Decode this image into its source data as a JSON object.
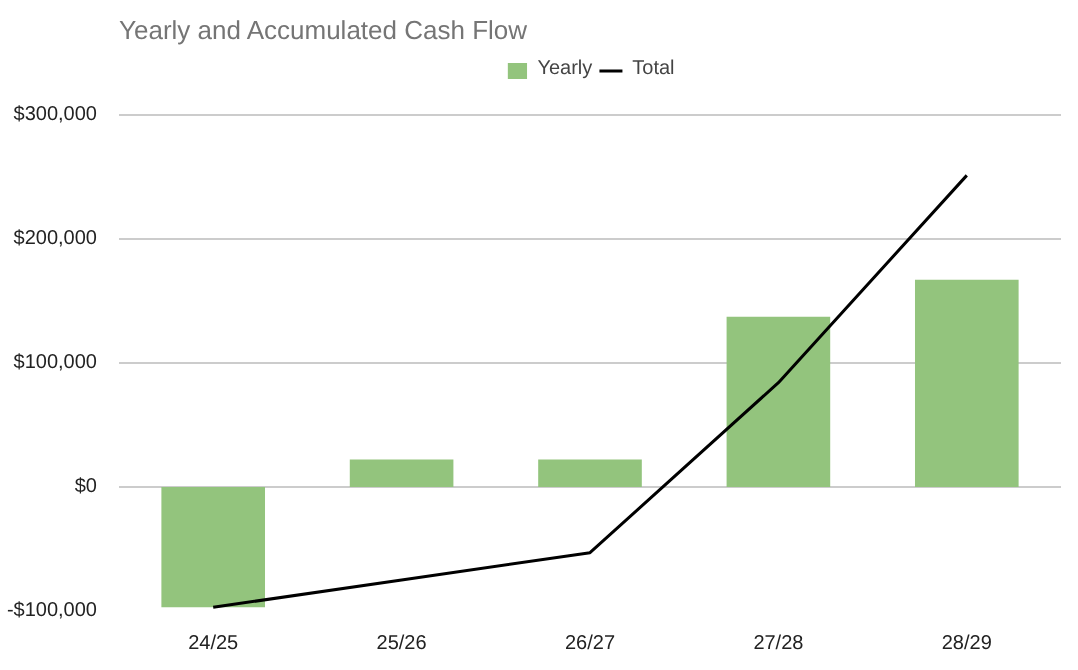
{
  "chart_data": {
    "type": "bar",
    "title": "Yearly and Accumulated Cash Flow",
    "categories": [
      "24/25",
      "25/26",
      "26/27",
      "27/28",
      "28/29"
    ],
    "series": [
      {
        "name": "Yearly",
        "color": "#93c47d",
        "values": [
          -97000,
          22000,
          22000,
          137000,
          167000
        ]
      },
      {
        "name": "Total",
        "type": "line",
        "color": "#000000",
        "values": [
          -97000,
          -75000,
          -53000,
          84000,
          251000
        ]
      }
    ],
    "ylim": [
      -100000,
      300000
    ],
    "yticks": [
      {
        "value": -100000,
        "label": "-$100,000"
      },
      {
        "value": 0,
        "label": "$0"
      },
      {
        "value": 100000,
        "label": "$100,000"
      },
      {
        "value": 200000,
        "label": "$200,000"
      },
      {
        "value": 300000,
        "label": "$300,000"
      }
    ],
    "grid": "y",
    "legend": "top",
    "marker": "none",
    "line_style": "solid"
  }
}
